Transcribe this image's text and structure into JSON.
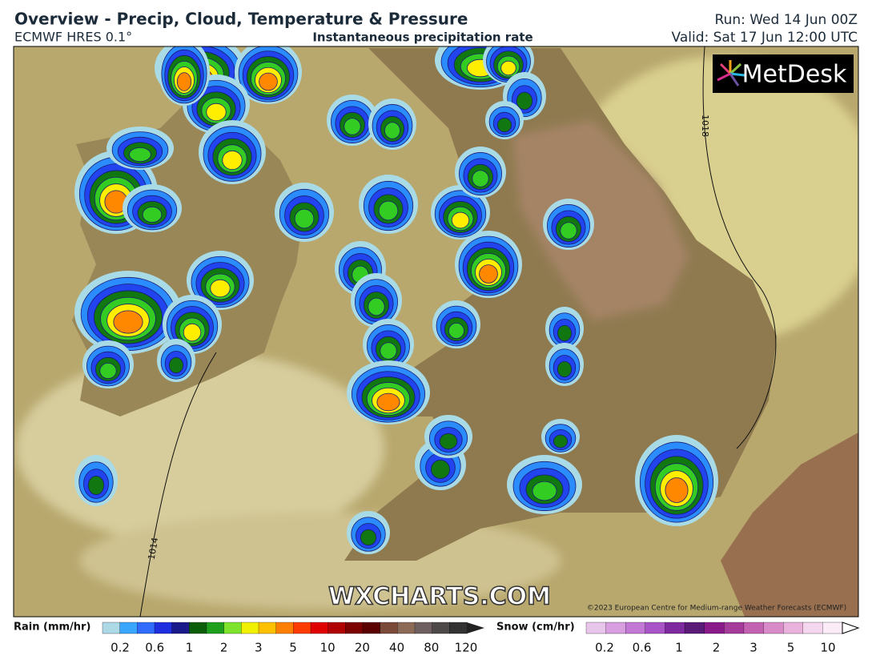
{
  "header": {
    "title": "Overview - Precip, Cloud, Temperature & Pressure",
    "model": "ECMWF HRES 0.1°",
    "subtitle": "Instantaneous precipitation rate",
    "run": "Run: Wed 14 Jun 00Z",
    "valid": "Valid: Sat 17 Jun 12:00 UTC"
  },
  "map": {
    "isobars": [
      "1018",
      "1014"
    ],
    "logo": "MetDesk",
    "watermark": "WXCHARTS.COM",
    "copyright": "©2023 European Centre for Medium-range Weather Forecasts (ECMWF)"
  },
  "legend": {
    "rain": {
      "label": "Rain (mm/hr)",
      "ticks": [
        "0.2",
        "0.6",
        "1",
        "2",
        "3",
        "5",
        "10",
        "20",
        "40",
        "80",
        "120"
      ]
    },
    "snow": {
      "label": "Snow (cm/hr)",
      "ticks": [
        "0.2",
        "0.6",
        "1",
        "2",
        "3",
        "5",
        "10"
      ]
    }
  }
}
